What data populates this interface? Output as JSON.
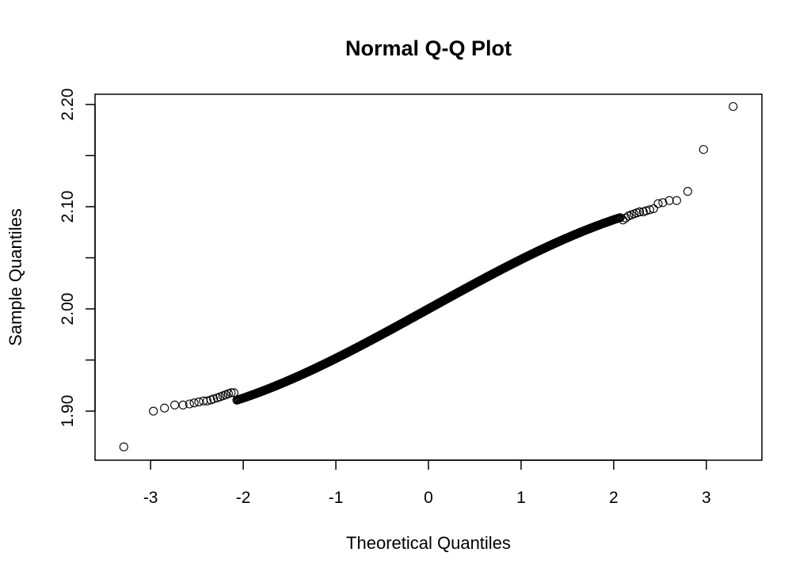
{
  "chart_data": {
    "type": "scatter",
    "title": "Normal Q-Q Plot",
    "xlabel": "Theoretical Quantiles",
    "ylabel": "Sample Quantiles",
    "xlim": [
      -3.6,
      3.6
    ],
    "ylim": [
      1.852,
      2.21
    ],
    "x_ticks": [
      -3,
      -2,
      -1,
      0,
      1,
      2,
      3
    ],
    "x_tick_labels": [
      "-3",
      "-2",
      "-1",
      "0",
      "1",
      "2",
      "3"
    ],
    "y_ticks": [
      1.9,
      1.95,
      2.0,
      2.05,
      2.1,
      2.15,
      2.2
    ],
    "y_tick_labels": [
      "1.90",
      "",
      "2.00",
      "",
      "2.10",
      "",
      "2.20"
    ],
    "grid": false,
    "legend": "none",
    "marker": "open-circle",
    "sample_size": 2000,
    "central_slope": 0.05,
    "tail_points": [
      {
        "x": -3.29,
        "y": 1.865
      },
      {
        "x": -2.97,
        "y": 1.9
      },
      {
        "x": -2.85,
        "y": 1.903
      },
      {
        "x": -2.74,
        "y": 1.906
      },
      {
        "x": -2.65,
        "y": 1.906
      },
      {
        "x": -2.58,
        "y": 1.907
      },
      {
        "x": -2.53,
        "y": 1.908
      },
      {
        "x": -2.48,
        "y": 1.909
      },
      {
        "x": -2.43,
        "y": 1.91
      },
      {
        "x": -2.39,
        "y": 1.91
      },
      {
        "x": -2.35,
        "y": 1.911
      },
      {
        "x": -2.32,
        "y": 1.912
      },
      {
        "x": -2.28,
        "y": 1.913
      },
      {
        "x": -2.25,
        "y": 1.914
      },
      {
        "x": -2.22,
        "y": 1.915
      },
      {
        "x": -2.19,
        "y": 1.916
      },
      {
        "x": -2.16,
        "y": 1.917
      },
      {
        "x": -2.13,
        "y": 1.918
      },
      {
        "x": -2.1,
        "y": 1.918
      },
      {
        "x": 2.1,
        "y": 2.087
      },
      {
        "x": 2.13,
        "y": 2.089
      },
      {
        "x": 2.16,
        "y": 2.091
      },
      {
        "x": 2.19,
        "y": 2.092
      },
      {
        "x": 2.22,
        "y": 2.093
      },
      {
        "x": 2.25,
        "y": 2.094
      },
      {
        "x": 2.28,
        "y": 2.095
      },
      {
        "x": 2.32,
        "y": 2.095
      },
      {
        "x": 2.35,
        "y": 2.096
      },
      {
        "x": 2.39,
        "y": 2.097
      },
      {
        "x": 2.43,
        "y": 2.098
      },
      {
        "x": 2.48,
        "y": 2.103
      },
      {
        "x": 2.53,
        "y": 2.104
      },
      {
        "x": 2.6,
        "y": 2.106
      },
      {
        "x": 2.68,
        "y": 2.106
      },
      {
        "x": 2.8,
        "y": 2.115
      },
      {
        "x": 2.97,
        "y": 2.156
      },
      {
        "x": 3.29,
        "y": 2.198
      }
    ]
  }
}
